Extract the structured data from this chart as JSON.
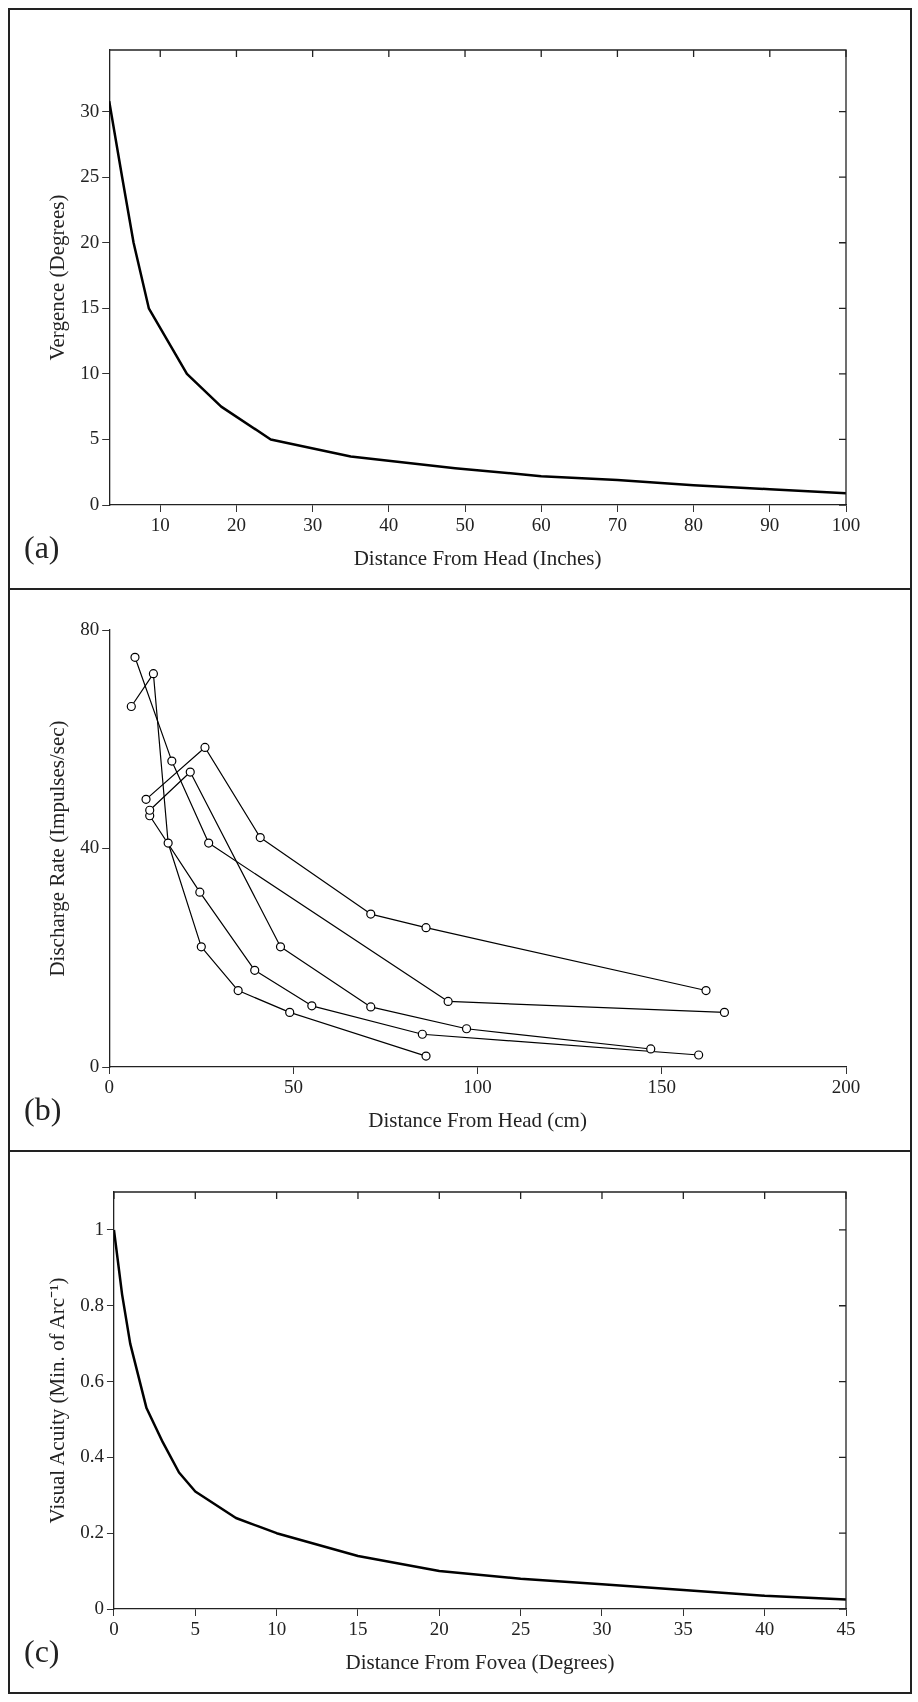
{
  "chart_data": [
    {
      "type": "line",
      "xlabel": "Distance From Head (Inches)",
      "ylabel": "Vergence (Degrees)",
      "annotations": [
        "(a)"
      ],
      "x": [
        3.3,
        5,
        6.5,
        8.5,
        13.5,
        18,
        24.5,
        35,
        48.7,
        60,
        70,
        80,
        90,
        100
      ],
      "values": [
        30.8,
        25,
        20,
        15,
        10,
        7.5,
        5,
        3.7,
        2.8,
        2.2,
        1.9,
        1.5,
        1.2,
        0.9
      ],
      "color": "#000000",
      "xlim": [
        3.3,
        100
      ],
      "xticks": [
        10,
        20,
        30,
        40,
        50,
        60,
        70,
        80,
        90,
        100
      ],
      "ylim": [
        0,
        34.7
      ],
      "yticks": [
        0,
        5,
        10,
        15,
        20,
        25,
        30
      ],
      "grid": false,
      "legend": false,
      "marker": "none",
      "line_style": "solid"
    },
    {
      "type": "line",
      "xlabel": "Distance From Head (cm)",
      "ylabel": "Discharge Rate (Impulses/sec)",
      "annotations": [
        "(b)"
      ],
      "series": [
        {
          "color": "#000000",
          "x": [
            7,
            17,
            27,
            92,
            167
          ],
          "values": [
            75,
            56,
            41,
            12,
            10
          ]
        },
        {
          "color": "#000000",
          "x": [
            6,
            12,
            16,
            25,
            35,
            49,
            86
          ],
          "values": [
            66,
            72,
            41,
            22,
            14,
            10,
            2
          ]
        },
        {
          "color": "#000000",
          "x": [
            10,
            26,
            41,
            71,
            86,
            162
          ],
          "values": [
            49,
            58.5,
            42,
            28,
            25.5,
            14
          ]
        },
        {
          "color": "#000000",
          "x": [
            11,
            22,
            46.5,
            71,
            97,
            147
          ],
          "values": [
            47,
            54,
            22,
            11,
            7,
            3.3
          ]
        },
        {
          "color": "#000000",
          "x": [
            11,
            24.6,
            39.5,
            55,
            85,
            160
          ],
          "values": [
            46,
            32,
            17.7,
            11.2,
            6,
            2.2
          ]
        }
      ],
      "xlim": [
        0,
        200
      ],
      "xticks": [
        0,
        50,
        100,
        150,
        200
      ],
      "ylim": [
        0,
        80
      ],
      "yticks": [
        0,
        40,
        80
      ],
      "grid": false,
      "legend": false,
      "marker": "circle",
      "line_style": "solid"
    },
    {
      "type": "line",
      "xlabel": "Distance From Fovea (Degrees)",
      "ylabel": "Visual Acuity (Min. of Arc⁻¹)",
      "annotations": [
        "(c)"
      ],
      "x": [
        0,
        0.5,
        1,
        2,
        3,
        4,
        5,
        7.5,
        10,
        15,
        20,
        25,
        30,
        35,
        40,
        45
      ],
      "values": [
        1,
        0.83,
        0.7,
        0.53,
        0.44,
        0.36,
        0.31,
        0.24,
        0.2,
        0.14,
        0.1,
        0.08,
        0.065,
        0.05,
        0.035,
        0.025
      ],
      "color": "#000000",
      "xlim": [
        0,
        45
      ],
      "xticks": [
        0,
        5,
        10,
        15,
        20,
        25,
        30,
        35,
        40,
        45
      ],
      "ylim": [
        0,
        1.1
      ],
      "yticks": [
        0,
        0.2,
        0.4,
        0.6,
        0.8,
        1
      ],
      "grid": false,
      "legend": false,
      "marker": "none",
      "line_style": "solid"
    }
  ]
}
